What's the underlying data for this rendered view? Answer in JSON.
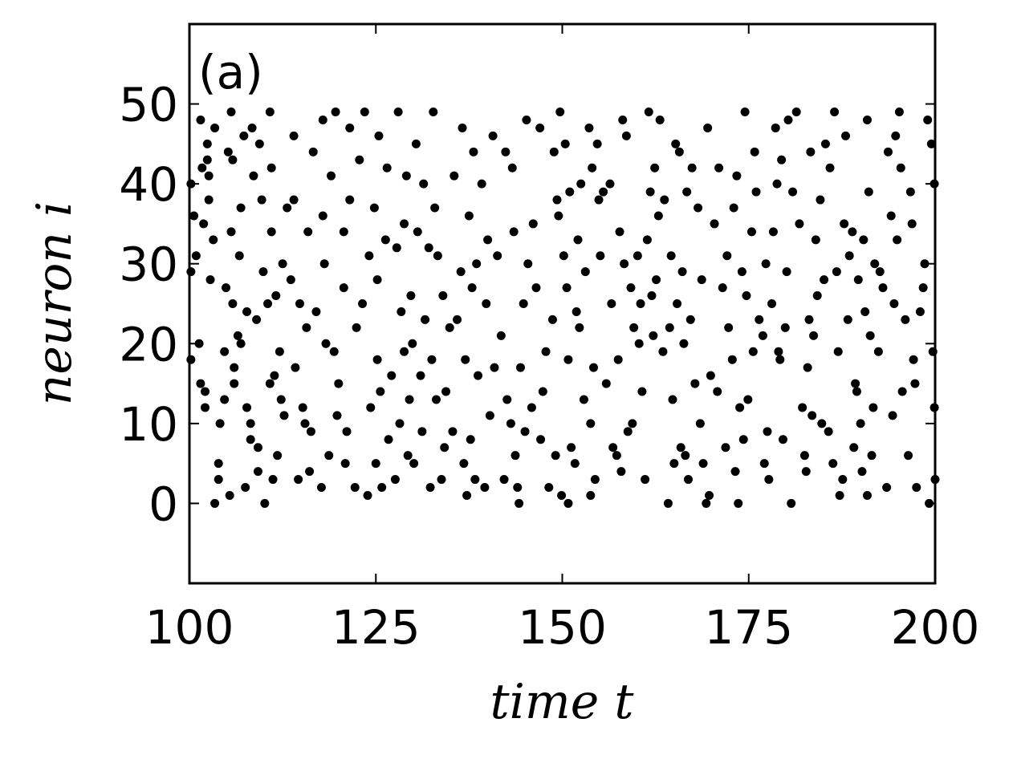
{
  "chart_data": {
    "type": "scatter",
    "label": "(a)",
    "xlabel": "time t",
    "ylabel": "neuron i",
    "color": "#000000",
    "xlim": [
      100,
      200
    ],
    "ylim": [
      -10,
      60
    ],
    "xticks": [
      100,
      125,
      150,
      175,
      200
    ],
    "yticks": [
      0,
      10,
      20,
      30,
      40,
      50
    ],
    "x": [
      100.2,
      100.2,
      100.2,
      100.6,
      100.9,
      101.3,
      101.5,
      101.7,
      101.5,
      101.9,
      102.1,
      102.1,
      102.4,
      102.4,
      102.6,
      102.6,
      102.8,
      103.2,
      103.4,
      103.4,
      103.9,
      103.9,
      104.1,
      104.7,
      104.7,
      104.9,
      105.2,
      105.4,
      105.6,
      105.6,
      105.8,
      105.8,
      106.0,
      106.0,
      106.5,
      106.7,
      106.9,
      106.9,
      107.3,
      107.5,
      107.7,
      107.7,
      108.2,
      108.2,
      108.4,
      108.6,
      109.0,
      109.2,
      109.2,
      109.4,
      109.7,
      109.9,
      110.1,
      110.5,
      110.8,
      110.8,
      111.0,
      111.0,
      111.2,
      111.4,
      111.6,
      111.8,
      112.1,
      112.3,
      112.5,
      112.7,
      113.1,
      113.6,
      114.0,
      114.0,
      114.2,
      114.6,
      114.8,
      115.2,
      115.5,
      115.7,
      115.9,
      116.1,
      116.3,
      116.6,
      117.0,
      117.7,
      117.9,
      117.9,
      118.1,
      118.3,
      118.7,
      119.0,
      119.4,
      119.6,
      119.8,
      120.0,
      120.7,
      120.7,
      120.9,
      121.1,
      121.5,
      121.5,
      122.2,
      122.4,
      122.8,
      123.2,
      123.5,
      123.9,
      124.1,
      124.3,
      124.8,
      125.0,
      125.2,
      125.2,
      125.4,
      125.6,
      125.8,
      126.3,
      126.5,
      126.7,
      127.1,
      127.6,
      127.8,
      128.0,
      128.2,
      128.4,
      128.8,
      128.8,
      129.1,
      129.3,
      129.5,
      129.7,
      129.9,
      130.1,
      130.4,
      130.6,
      131.0,
      131.2,
      131.4,
      131.6,
      132.1,
      132.3,
      132.5,
      132.7,
      132.9,
      133.1,
      133.3,
      133.8,
      134.0,
      134.2,
      134.4,
      134.9,
      135.3,
      135.5,
      135.9,
      136.4,
      136.6,
      136.8,
      137.0,
      137.2,
      137.5,
      137.7,
      137.9,
      138.1,
      138.3,
      138.5,
      138.7,
      139.2,
      139.6,
      139.8,
      140.0,
      140.3,
      140.7,
      140.9,
      141.3,
      141.8,
      142.2,
      142.4,
      142.6,
      143.1,
      143.3,
      143.5,
      143.7,
      144.0,
      144.2,
      144.4,
      144.8,
      145.0,
      145.2,
      145.4,
      145.9,
      146.1,
      146.5,
      147.0,
      147.1,
      147.4,
      147.8,
      148.2,
      148.7,
      148.9,
      149.1,
      149.3,
      149.5,
      149.7,
      149.9,
      150.2,
      150.4,
      150.6,
      150.8,
      150.8,
      151.0,
      151.2,
      151.7,
      151.9,
      152.1,
      152.3,
      152.5,
      152.9,
      153.1,
      153.6,
      153.8,
      153.8,
      154.0,
      154.2,
      154.4,
      154.7,
      154.9,
      155.1,
      155.5,
      155.9,
      156.4,
      156.6,
      156.8,
      157.3,
      157.5,
      157.7,
      157.9,
      158.1,
      158.3,
      158.6,
      158.8,
      159.2,
      159.4,
      159.6,
      160.1,
      160.3,
      160.5,
      160.7,
      161.1,
      161.4,
      161.6,
      161.8,
      162.0,
      162.2,
      162.4,
      162.6,
      162.9,
      163.1,
      163.5,
      163.7,
      164.2,
      164.4,
      164.6,
      164.8,
      165.0,
      165.2,
      165.4,
      165.7,
      165.9,
      166.1,
      166.3,
      166.5,
      166.7,
      166.9,
      167.2,
      167.4,
      167.8,
      168.2,
      168.5,
      168.7,
      168.9,
      169.3,
      169.5,
      169.7,
      169.9,
      170.4,
      170.8,
      171.0,
      171.5,
      171.9,
      172.1,
      172.3,
      172.8,
      173.0,
      173.2,
      173.4,
      173.6,
      173.8,
      174.1,
      174.3,
      174.5,
      174.7,
      174.9,
      175.4,
      175.6,
      175.8,
      176.0,
      176.4,
      176.9,
      177.1,
      177.3,
      177.5,
      177.7,
      178.1,
      178.3,
      178.6,
      178.8,
      179.0,
      179.2,
      179.4,
      179.6,
      179.9,
      180.1,
      180.3,
      180.7,
      180.9,
      181.4,
      181.8,
      182.2,
      182.5,
      182.7,
      182.9,
      183.1,
      183.3,
      183.5,
      183.7,
      184.0,
      184.2,
      184.6,
      184.8,
      185.1,
      185.3,
      185.7,
      185.9,
      186.3,
      186.5,
      186.8,
      187.0,
      187.2,
      187.6,
      187.8,
      188.0,
      188.3,
      188.5,
      188.9,
      189.1,
      189.3,
      189.5,
      189.7,
      190.0,
      190.2,
      190.4,
      190.6,
      190.9,
      190.9,
      191.1,
      191.3,
      191.5,
      191.7,
      191.9,
      192.4,
      192.6,
      193.0,
      193.5,
      193.7,
      194.1,
      194.3,
      194.5,
      194.7,
      194.9,
      195.2,
      195.4,
      195.6,
      196.0,
      196.4,
      196.7,
      196.9,
      197.1,
      197.3,
      197.5,
      198.0,
      198.4,
      198.6,
      199.0,
      199.2,
      199.5,
      199.7,
      199.9,
      199.9,
      200.0
    ],
    "values": [
      40,
      29,
      18,
      36,
      31,
      20,
      48,
      42,
      15,
      35,
      14,
      12,
      45,
      43,
      38,
      41,
      28,
      33,
      47,
      0,
      5,
      3,
      10,
      19,
      13,
      27,
      44,
      1,
      49,
      34,
      43,
      25,
      17,
      15,
      21,
      31,
      37,
      20,
      46,
      2,
      24,
      12,
      8,
      10,
      47,
      41,
      23,
      4,
      7,
      45,
      38,
      29,
      0,
      25,
      49,
      15,
      42,
      34,
      3,
      16,
      26,
      6,
      19,
      13,
      30,
      11,
      37,
      28,
      46,
      38,
      17,
      3,
      25,
      12,
      10,
      22,
      34,
      4,
      9,
      44,
      24,
      2,
      36,
      48,
      30,
      20,
      6,
      41,
      19,
      49,
      11,
      15,
      27,
      34,
      5,
      9,
      38,
      47,
      2,
      22,
      43,
      25,
      49,
      1,
      31,
      12,
      37,
      5,
      18,
      28,
      46,
      14,
      2,
      33,
      42,
      8,
      16,
      3,
      32,
      49,
      10,
      24,
      35,
      19,
      41,
      6,
      13,
      26,
      20,
      5,
      45,
      34,
      16,
      9,
      40,
      23,
      32,
      2,
      18,
      49,
      37,
      13,
      31,
      3,
      26,
      7,
      14,
      22,
      9,
      41,
      23,
      29,
      47,
      5,
      18,
      1,
      36,
      8,
      27,
      44,
      3,
      30,
      16,
      40,
      2,
      25,
      33,
      11,
      46,
      17,
      31,
      21,
      3,
      44,
      13,
      10,
      42,
      34,
      6,
      2,
      0,
      17,
      25,
      9,
      48,
      30,
      12,
      35,
      27,
      47,
      8,
      14,
      19,
      2,
      23,
      44,
      6,
      38,
      36,
      49,
      1,
      31,
      45,
      27,
      0,
      18,
      39,
      7,
      5,
      24,
      33,
      22,
      40,
      13,
      29,
      47,
      1,
      10,
      42,
      17,
      3,
      45,
      38,
      31,
      39,
      15,
      40,
      25,
      7,
      6,
      18,
      34,
      4,
      48,
      30,
      46,
      9,
      27,
      10,
      22,
      31,
      20,
      25,
      14,
      3,
      33,
      49,
      39,
      26,
      21,
      42,
      28,
      36,
      48,
      19,
      38,
      0,
      22,
      31,
      13,
      5,
      45,
      25,
      44,
      7,
      29,
      20,
      6,
      39,
      3,
      23,
      42,
      15,
      37,
      10,
      28,
      5,
      0,
      47,
      1,
      16,
      35,
      14,
      42,
      27,
      7,
      31,
      22,
      18,
      37,
      4,
      41,
      0,
      12,
      29,
      8,
      49,
      26,
      13,
      34,
      19,
      44,
      39,
      23,
      21,
      5,
      30,
      9,
      3,
      25,
      34,
      47,
      40,
      19,
      18,
      43,
      8,
      22,
      29,
      48,
      0,
      39,
      49,
      35,
      12,
      6,
      4,
      17,
      23,
      44,
      11,
      21,
      33,
      26,
      38,
      10,
      28,
      45,
      9,
      42,
      5,
      49,
      29,
      19,
      1,
      3,
      35,
      46,
      23,
      31,
      34,
      7,
      15,
      14,
      28,
      10,
      4,
      33,
      24,
      1,
      48,
      39,
      21,
      6,
      12,
      30,
      19,
      29,
      27,
      2,
      44,
      36,
      11,
      25,
      46,
      33,
      49,
      42,
      14,
      23,
      6,
      39,
      35,
      18,
      15,
      2,
      24,
      27,
      30,
      48,
      0,
      45,
      19,
      12,
      40,
      3
    ]
  }
}
